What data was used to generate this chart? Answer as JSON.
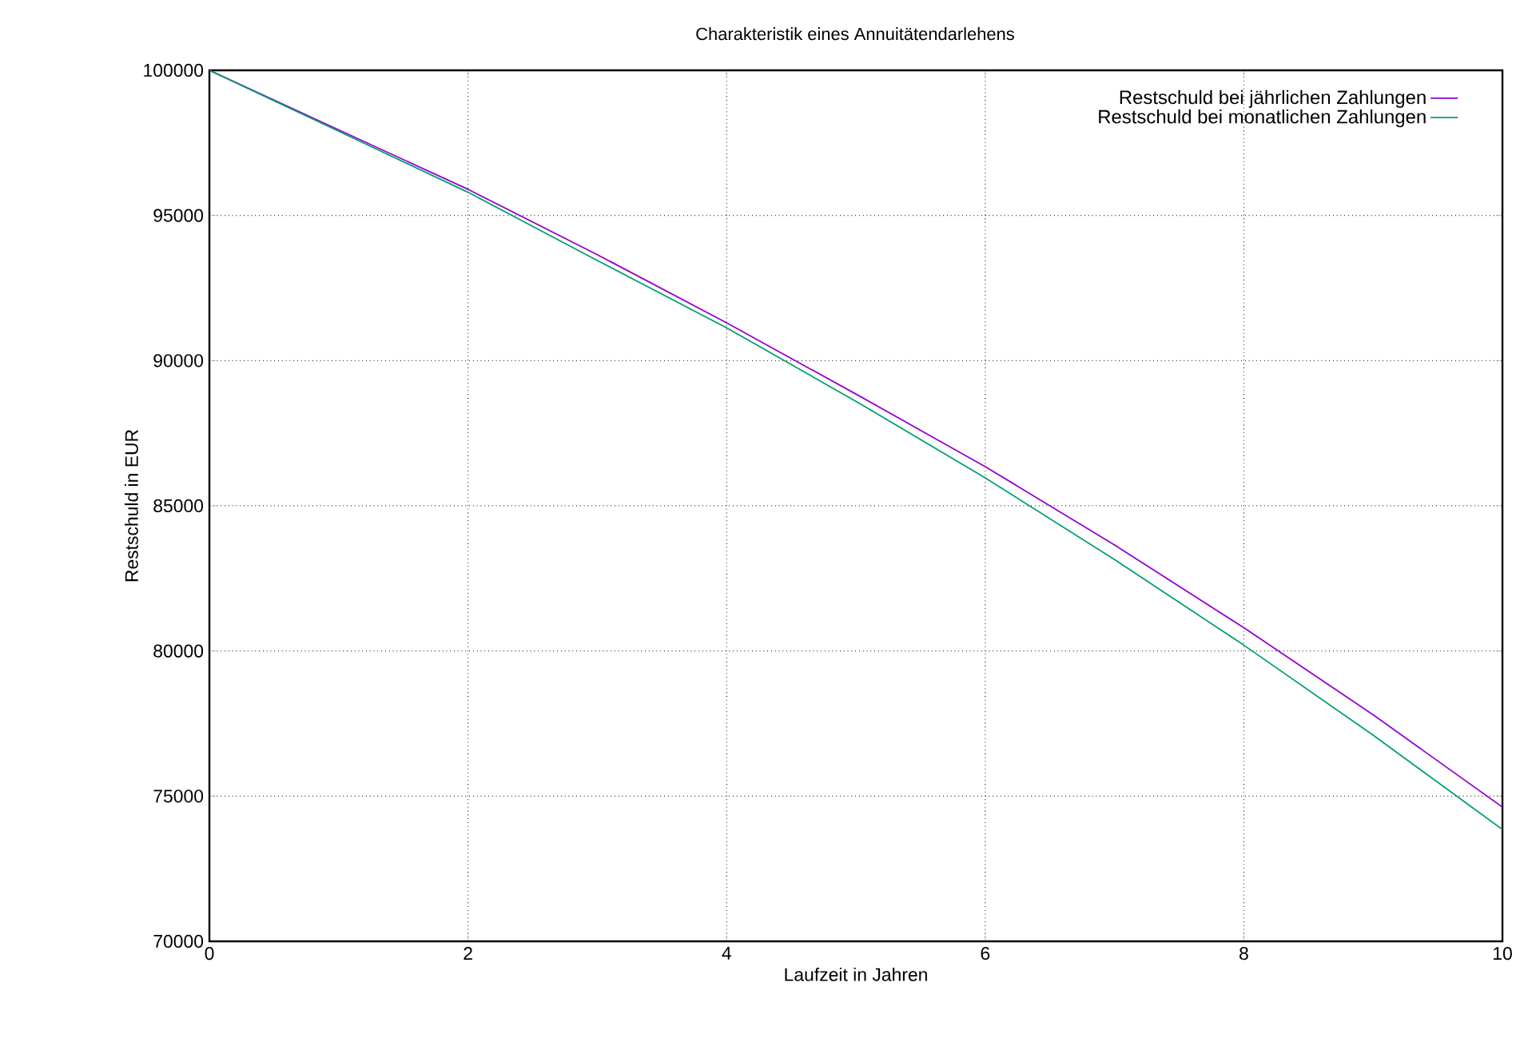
{
  "chart_data": {
    "type": "line",
    "title": "Charakteristik eines Annuitätendarlehens",
    "xlabel": "Laufzeit in Jahren",
    "ylabel": "Restschuld in EUR",
    "x": [
      0,
      1,
      2,
      3,
      4,
      5,
      6,
      7,
      8,
      9,
      10
    ],
    "series": [
      {
        "name": "Restschuld bei jährlichen Zahlungen",
        "color": "#9400d3",
        "values": [
          100000,
          97950,
          95900,
          93650,
          91300,
          88850,
          86350,
          83650,
          80800,
          77800,
          74620
        ]
      },
      {
        "name": "Restschuld bei monatlichen Zahlungen",
        "color": "#009e73",
        "values": [
          100000,
          97900,
          95800,
          93450,
          91130,
          88600,
          85960,
          83150,
          80200,
          77100,
          73850
        ]
      }
    ],
    "xlim": [
      0,
      10
    ],
    "ylim": [
      70000,
      100000
    ],
    "xticks": [
      0,
      2,
      4,
      6,
      8,
      10
    ],
    "yticks": [
      70000,
      75000,
      80000,
      85000,
      90000,
      95000,
      100000
    ],
    "grid": true,
    "legend": "top right",
    "marker": "none",
    "line_style": "solid"
  }
}
